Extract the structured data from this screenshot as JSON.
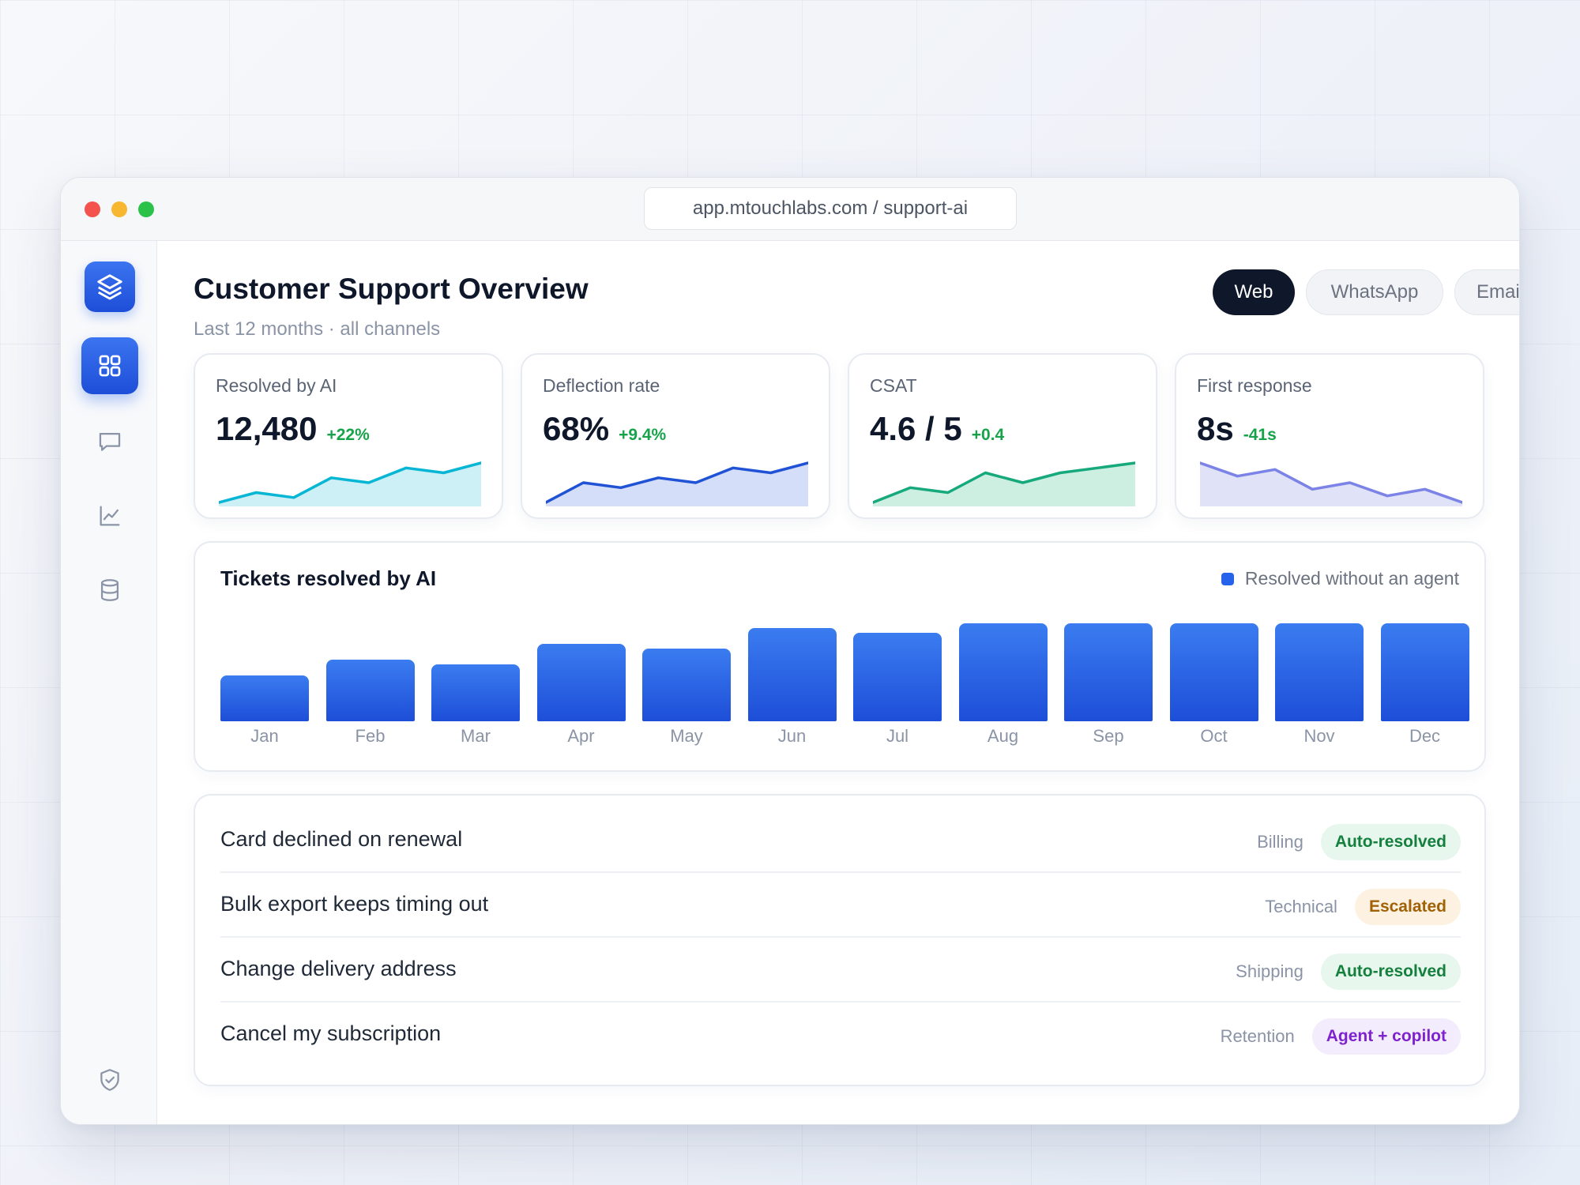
{
  "browser": {
    "url": "app.mtouchlabs.com / support-ai"
  },
  "sidebar": {
    "items": [
      {
        "id": "dashboard",
        "icon": "grid-icon",
        "active": true
      },
      {
        "id": "conversations",
        "icon": "chat-icon"
      },
      {
        "id": "analytics",
        "icon": "chart-icon"
      },
      {
        "id": "data",
        "icon": "database-icon"
      },
      {
        "id": "security",
        "icon": "shield-icon"
      }
    ]
  },
  "header": {
    "title": "Customer Support Overview",
    "subtitle": "Last 12 months · all channels"
  },
  "channels": [
    {
      "label": "Web",
      "active": true
    },
    {
      "label": "WhatsApp",
      "active": false
    },
    {
      "label": "Email",
      "active": false
    }
  ],
  "kpis": [
    {
      "label": "Resolved by AI",
      "value": "12,480",
      "delta": "+22%",
      "color": "#06b6d4",
      "fill": "#cdeff6",
      "trend": [
        2,
        4,
        3,
        7,
        6,
        9,
        8,
        10
      ]
    },
    {
      "label": "Deflection rate",
      "value": "68%",
      "delta": "+9.4%",
      "color": "#2052d6",
      "fill": "#d5def8",
      "trend": [
        1,
        5,
        4,
        6,
        5,
        8,
        7,
        9
      ]
    },
    {
      "label": "CSAT",
      "value": "4.6 / 5",
      "delta": "+0.4",
      "color": "#16a97c",
      "fill": "#ccefe2",
      "trend": [
        2,
        5,
        4,
        8,
        6,
        8,
        9,
        10
      ]
    },
    {
      "label": "First response",
      "value": "8s",
      "delta": "-41s",
      "color": "#7b83e6",
      "fill": "#e0e2f8",
      "trend": [
        9,
        7,
        8,
        5,
        6,
        4,
        5,
        3
      ]
    }
  ],
  "chart_data": {
    "type": "bar",
    "title": "Tickets resolved by AI",
    "legend": "Resolved without an agent",
    "legend_position": "top-right",
    "categories": [
      "Jan",
      "Feb",
      "Mar",
      "Apr",
      "May",
      "Jun",
      "Jul",
      "Aug",
      "Sep",
      "Oct",
      "Nov",
      "Dec"
    ],
    "values": [
      58,
      78,
      72,
      98,
      92,
      118,
      112,
      124,
      124,
      124,
      124,
      124
    ],
    "ylim": [
      0,
      124
    ],
    "color": "#2563eb"
  },
  "tickets": [
    {
      "title": "Card declined on renewal",
      "category": "Billing",
      "status": "Auto-resolved",
      "tone": "green"
    },
    {
      "title": "Bulk export keeps timing out",
      "category": "Technical",
      "status": "Escalated",
      "tone": "amber"
    },
    {
      "title": "Change delivery address",
      "category": "Shipping",
      "status": "Auto-resolved",
      "tone": "green"
    },
    {
      "title": "Cancel my subscription",
      "category": "Retention",
      "status": "Agent + copilot",
      "tone": "purple"
    }
  ]
}
